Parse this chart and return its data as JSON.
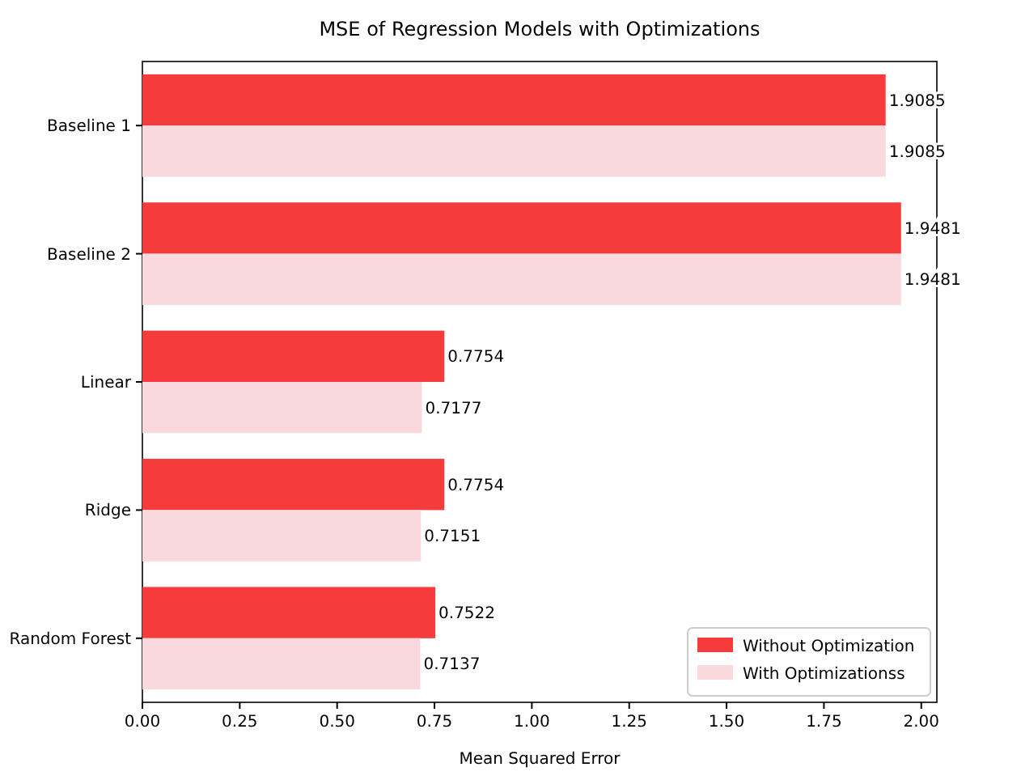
{
  "chart_data": {
    "type": "bar",
    "orientation": "horizontal",
    "title": "MSE of Regression Models with Optimizations",
    "xlabel": "Mean Squared Error",
    "categories": [
      "Baseline 1",
      "Baseline 2",
      "Linear",
      "Ridge",
      "Random Forest"
    ],
    "series": [
      {
        "name": "Without Optimization",
        "color": "#f53b3b",
        "values": [
          1.9085,
          1.9481,
          0.7754,
          0.7754,
          0.7522
        ]
      },
      {
        "name": "With Optimizationss",
        "color": "#f9d9de",
        "values": [
          1.9085,
          1.9481,
          0.7177,
          0.7151,
          0.7137
        ]
      }
    ],
    "xlim": [
      0,
      2.04
    ],
    "xticks": [
      {
        "value": 0,
        "label": "0.00"
      },
      {
        "value": 0.25,
        "label": "0.25"
      },
      {
        "value": 0.5,
        "label": "0.50"
      },
      {
        "value": 0.75,
        "label": "0.75"
      },
      {
        "value": 1,
        "label": "1.00"
      },
      {
        "value": 1.25,
        "label": "1.25"
      },
      {
        "value": 1.5,
        "label": "1.50"
      },
      {
        "value": 1.75,
        "label": "1.75"
      },
      {
        "value": 2,
        "label": "2.00"
      }
    ],
    "data_labels": true,
    "legend": "bottom right",
    "grid": false
  }
}
